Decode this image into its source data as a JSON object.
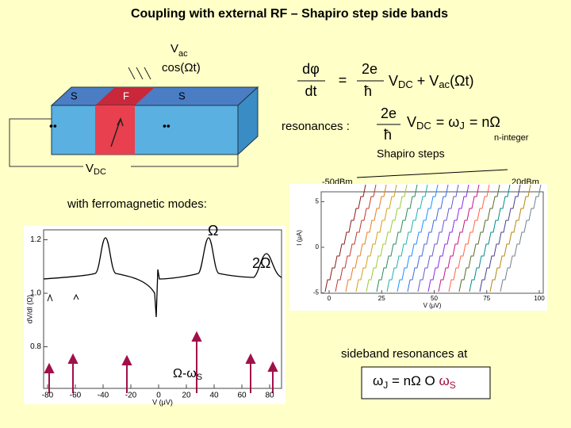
{
  "title": "Coupling with external RF – Shapiro step side bands",
  "junction": {
    "source_v": "V",
    "source_sub": "ac",
    "source_phase": "cos(Ωt)",
    "layers": [
      "S",
      "F",
      "S"
    ],
    "bias_v": "V",
    "bias_sub": "DC"
  },
  "equation": {
    "lhs_num": "dφ",
    "lhs_den": "dt",
    "eq": "=",
    "num": "2e",
    "den": "ħ",
    "v": "V",
    "v_sub": "DC",
    "plus": "+ V",
    "ac_sub": "ac",
    "ac_arg": "(Ωt)"
  },
  "resonance": {
    "label": "resonances :",
    "num": "2e",
    "den": "ħ",
    "v": "V",
    "v_sub": "DC",
    "mid": "= ω",
    "j_sub": "J",
    "rhs": "= nΩ",
    "note": "n-integer"
  },
  "shapiro": {
    "title": "Shapiro steps",
    "low": "-50dBm",
    "high": "20dBm",
    "xticks": [
      0,
      25,
      50,
      75,
      100
    ],
    "yticks": [
      5,
      0,
      -5
    ],
    "xlabel": "V (μV)",
    "ylabel": "I (μA)"
  },
  "ferro": {
    "heading": "with ferromagnetic modes:",
    "peak1": "Ω",
    "peak2": "2Ω",
    "side_main": "Ω-ω",
    "side_sub": "S",
    "yticks": [
      "0.8",
      "1.0",
      "1.2"
    ],
    "xticks": [
      -80,
      -60,
      -40,
      -20,
      0,
      20,
      40,
      60,
      80
    ],
    "xlabel": "V (μV)",
    "ylabel": "dV/dI (Ω)"
  },
  "sideband": {
    "heading": "sideband resonances at",
    "w": "ω",
    "w_sub": "J",
    "mid": " = nΩ O ",
    "ws": "ω",
    "ws_sub": "S"
  }
}
